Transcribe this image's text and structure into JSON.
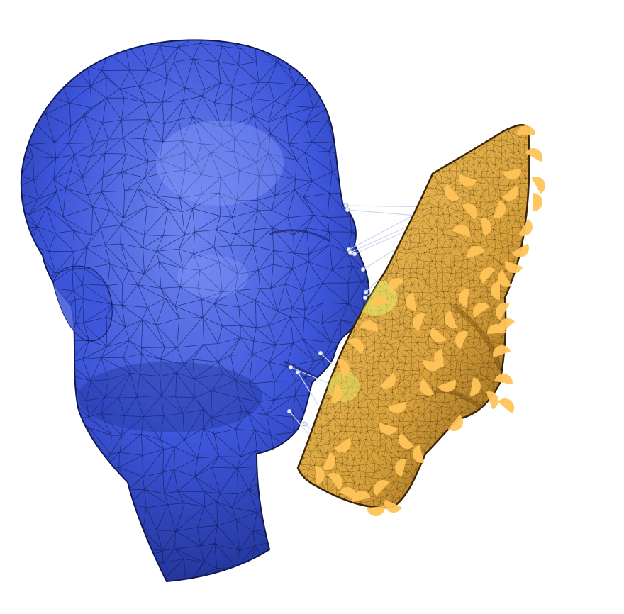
{
  "scene": {
    "head_mesh": {
      "name": "head-mesh",
      "color": "#3d55d9",
      "highlight": "#6f86f0",
      "shadow": "#1e2e8c",
      "edge": "#101a55"
    },
    "face_patch": {
      "name": "face-patch",
      "color": "#d9a23c",
      "highlight": "#f2c865",
      "shadow": "#7a5010",
      "edge": "#3a2606"
    },
    "landmark_color": "#ffc45a",
    "correspondence_color": "#cfd6ee"
  }
}
